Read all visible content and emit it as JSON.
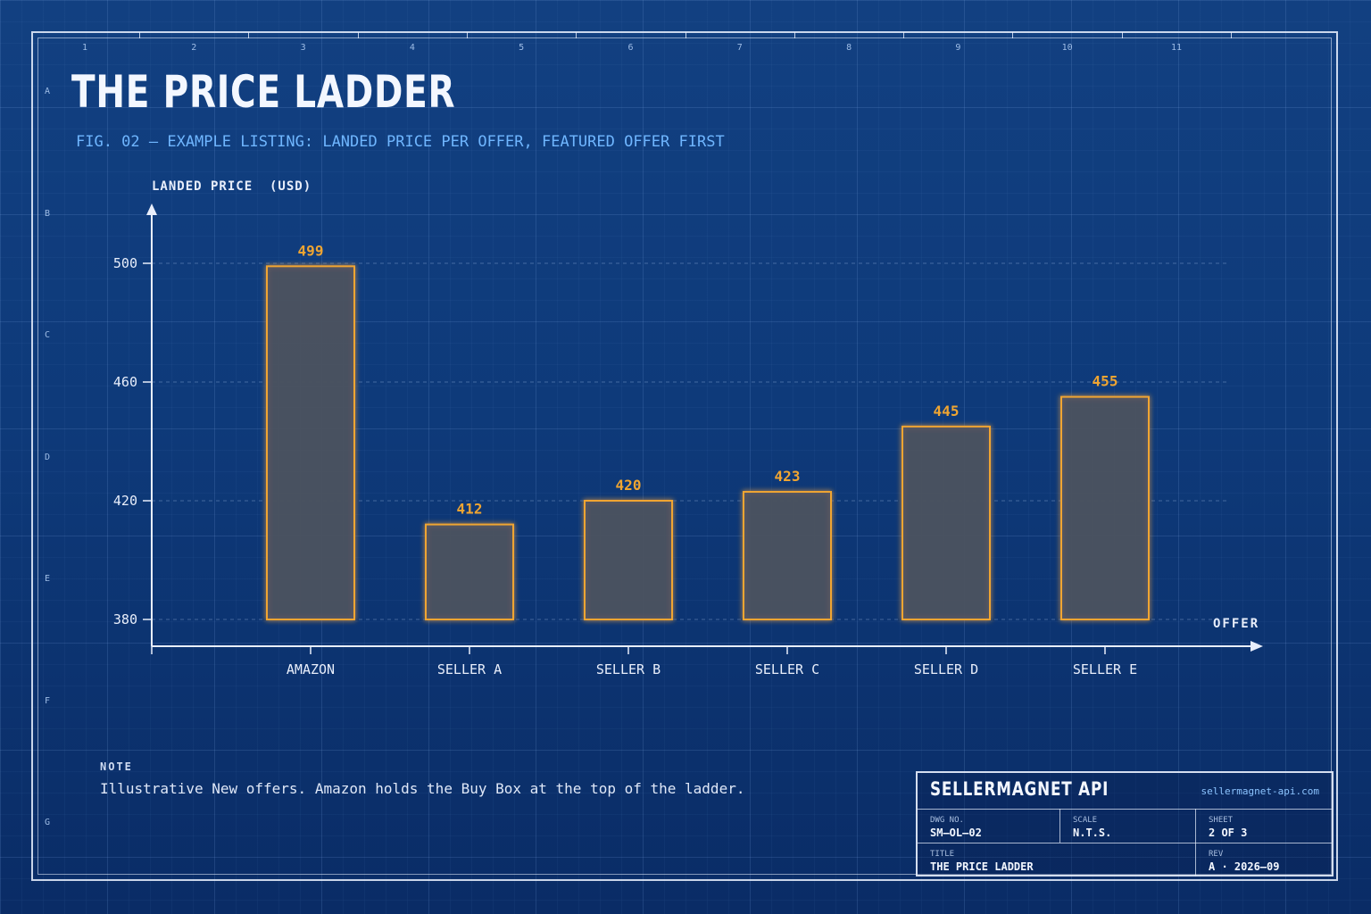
{
  "header": {
    "title": "THE PRICE LADDER",
    "subtitle": "FIG. 02  —  EXAMPLE LISTING: LANDED PRICE PER OFFER, FEATURED OFFER FIRST"
  },
  "frame": {
    "columns": [
      "1",
      "2",
      "3",
      "4",
      "5",
      "6",
      "7",
      "8",
      "9",
      "10",
      "11"
    ],
    "rows": [
      "A",
      "B",
      "C",
      "D",
      "E",
      "F",
      "G"
    ]
  },
  "chart_data": {
    "type": "bar",
    "title": "THE PRICE LADDER",
    "ylabel": "LANDED PRICE  (USD)",
    "xlabel": "OFFER",
    "categories": [
      "AMAZON",
      "SELLER A",
      "SELLER B",
      "SELLER C",
      "SELLER D",
      "SELLER E"
    ],
    "values": [
      499,
      412,
      420,
      423,
      445,
      455
    ],
    "yticks": [
      380,
      420,
      460,
      500
    ],
    "ylim": [
      380,
      500
    ],
    "grid": true,
    "colors": {
      "bar_stroke": "#f0a531",
      "bar_fill": "#4a5160",
      "value_label": "#f0a531",
      "axis": "#e8eefb"
    }
  },
  "note": {
    "label": "NOTE",
    "text": "Illustrative New offers. Amazon holds the Buy Box at the top of the ladder."
  },
  "title_block": {
    "brand": "SELLERMAGNET API",
    "url": "sellermagnet-api.com",
    "dwg_caption": "DWG NO.",
    "dwg_value": "SM—OL—02",
    "scale_caption": "SCALE",
    "scale_value": "N.T.S.",
    "sheet_caption": "SHEET",
    "sheet_value": "2 OF 3",
    "title_caption": "TITLE",
    "title_value": "THE PRICE LADDER",
    "rev_caption": "REV",
    "rev_value": "A · 2026—09"
  }
}
